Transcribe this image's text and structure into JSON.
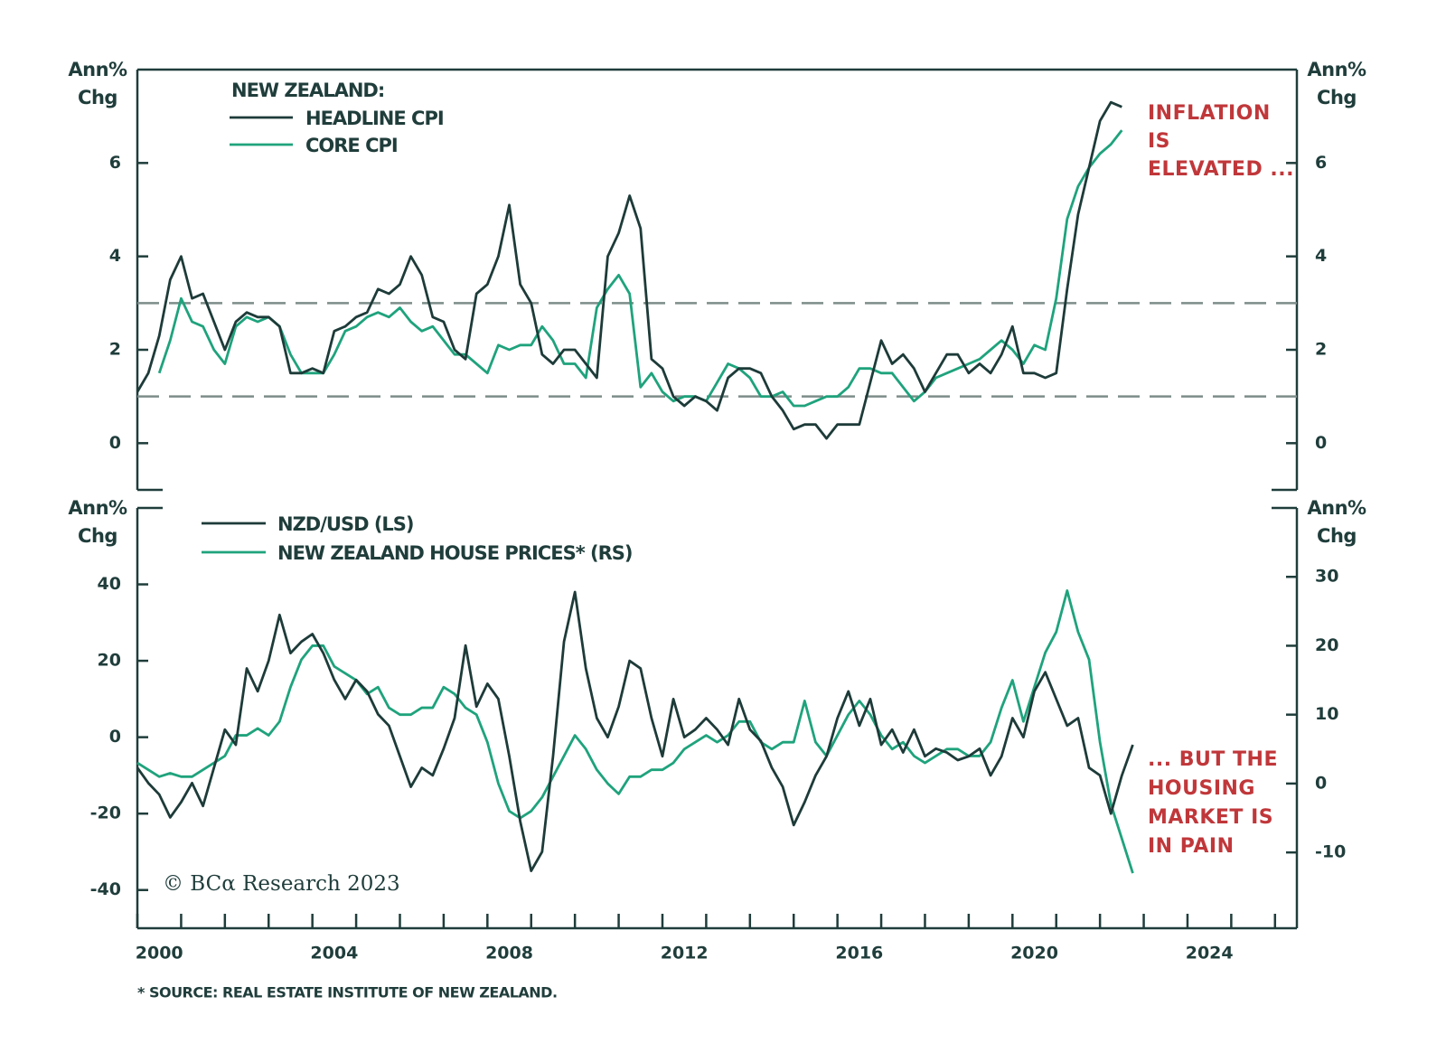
{
  "chart_data": [
    {
      "type": "line",
      "legend_title": "NEW ZEALAND:",
      "y_label": [
        "Ann%",
        "Chg"
      ],
      "y2_label": [
        "Ann%",
        "Chg"
      ],
      "xlim": [
        2000,
        2026.5
      ],
      "ylim": [
        -1,
        8
      ],
      "yticks": [
        0,
        2,
        4,
        6
      ],
      "y2lim": [
        -1,
        8
      ],
      "y2ticks": [
        0,
        2,
        4,
        6
      ],
      "reference_lines": [
        1,
        3
      ],
      "annotation": [
        "INFLATION",
        "IS",
        "ELEVATED ..."
      ],
      "annotation_color": "#c0373a",
      "x": [
        2000,
        2000.25,
        2000.5,
        2000.75,
        2001,
        2001.25,
        2001.5,
        2001.75,
        2002,
        2002.25,
        2002.5,
        2002.75,
        2003,
        2003.25,
        2003.5,
        2003.75,
        2004,
        2004.25,
        2004.5,
        2004.75,
        2005,
        2005.25,
        2005.5,
        2005.75,
        2006,
        2006.25,
        2006.5,
        2006.75,
        2007,
        2007.25,
        2007.5,
        2007.75,
        2008,
        2008.25,
        2008.5,
        2008.75,
        2009,
        2009.25,
        2009.5,
        2009.75,
        2010,
        2010.25,
        2010.5,
        2010.75,
        2011,
        2011.25,
        2011.5,
        2011.75,
        2012,
        2012.25,
        2012.5,
        2012.75,
        2013,
        2013.25,
        2013.5,
        2013.75,
        2014,
        2014.25,
        2014.5,
        2014.75,
        2015,
        2015.25,
        2015.5,
        2015.75,
        2016,
        2016.25,
        2016.5,
        2016.75,
        2017,
        2017.25,
        2017.5,
        2017.75,
        2018,
        2018.25,
        2018.5,
        2018.75,
        2019,
        2019.25,
        2019.5,
        2019.75,
        2020,
        2020.25,
        2020.5,
        2020.75,
        2021,
        2021.25,
        2021.5,
        2021.75,
        2022,
        2022.25,
        2022.5
      ],
      "series": [
        {
          "name": "HEADLINE CPI",
          "color": "#1d3b39",
          "values": [
            1.1,
            1.5,
            2.3,
            3.5,
            4.0,
            3.1,
            3.2,
            2.6,
            2.0,
            2.6,
            2.8,
            2.7,
            2.7,
            2.5,
            1.5,
            1.5,
            1.6,
            1.5,
            2.4,
            2.5,
            2.7,
            2.8,
            3.3,
            3.2,
            3.4,
            4.0,
            3.6,
            2.7,
            2.6,
            2.0,
            1.8,
            3.2,
            3.4,
            4.0,
            5.1,
            3.4,
            3.0,
            1.9,
            1.7,
            2.0,
            2.0,
            1.7,
            1.4,
            4.0,
            4.5,
            5.3,
            4.6,
            1.8,
            1.6,
            1.0,
            0.8,
            1.0,
            0.9,
            0.7,
            1.4,
            1.6,
            1.6,
            1.5,
            1.0,
            0.7,
            0.3,
            0.4,
            0.4,
            0.1,
            0.4,
            0.4,
            0.4,
            1.3,
            2.2,
            1.7,
            1.9,
            1.6,
            1.1,
            1.5,
            1.9,
            1.9,
            1.5,
            1.7,
            1.5,
            1.9,
            2.5,
            1.5,
            1.5,
            1.4,
            1.5,
            3.3,
            4.9,
            5.9,
            6.9,
            7.3,
            7.2
          ]
        },
        {
          "name": "CORE CPI",
          "color": "#1fa37c",
          "values": [
            null,
            null,
            1.5,
            2.2,
            3.1,
            2.6,
            2.5,
            2.0,
            1.7,
            2.5,
            2.7,
            2.6,
            2.7,
            2.5,
            1.9,
            1.5,
            1.5,
            1.5,
            1.9,
            2.4,
            2.5,
            2.7,
            2.8,
            2.7,
            2.9,
            2.6,
            2.4,
            2.5,
            2.2,
            1.9,
            1.9,
            1.7,
            1.5,
            2.1,
            2.0,
            2.1,
            2.1,
            2.5,
            2.2,
            1.7,
            1.7,
            1.4,
            2.9,
            3.3,
            3.6,
            3.2,
            1.2,
            1.5,
            1.1,
            0.9,
            1.0,
            1.0,
            0.9,
            1.3,
            1.7,
            1.6,
            1.4,
            1.0,
            1.0,
            1.1,
            0.8,
            0.8,
            0.9,
            1.0,
            1.0,
            1.2,
            1.6,
            1.6,
            1.5,
            1.5,
            1.2,
            0.9,
            1.1,
            1.4,
            1.5,
            1.6,
            1.7,
            1.8,
            2.0,
            2.2,
            2.0,
            1.7,
            2.1,
            2.0,
            3.1,
            4.8,
            5.5,
            5.9,
            6.2,
            6.4,
            6.7
          ]
        }
      ]
    },
    {
      "type": "line",
      "y_label": [
        "Ann%",
        "Chg"
      ],
      "y2_label": [
        "Ann%",
        "Chg"
      ],
      "xlim": [
        2000,
        2026.5
      ],
      "xticks": [
        2000,
        2004,
        2008,
        2012,
        2016,
        2020,
        2024
      ],
      "xminorticks": [
        2001,
        2002,
        2003,
        2005,
        2006,
        2007,
        2009,
        2010,
        2011,
        2013,
        2014,
        2015,
        2017,
        2018,
        2019,
        2021,
        2022,
        2023,
        2025,
        2026
      ],
      "ylim": [
        -50,
        60
      ],
      "yticks": [
        -40,
        -20,
        0,
        20,
        40
      ],
      "y2lim": [
        -21,
        40
      ],
      "y2ticks": [
        -10,
        0,
        10,
        20,
        30
      ],
      "annotation": [
        "... BUT THE",
        "HOUSING",
        "MARKET IS",
        "IN PAIN"
      ],
      "annotation_color": "#c0373a",
      "credit": "© BCα Research 2023",
      "footnote": "* SOURCE: REAL ESTATE INSTITUTE OF NEW ZEALAND.",
      "x": [
        2000,
        2000.25,
        2000.5,
        2000.75,
        2001,
        2001.25,
        2001.5,
        2001.75,
        2002,
        2002.25,
        2002.5,
        2002.75,
        2003,
        2003.25,
        2003.5,
        2003.75,
        2004,
        2004.25,
        2004.5,
        2004.75,
        2005,
        2005.25,
        2005.5,
        2005.75,
        2006,
        2006.25,
        2006.5,
        2006.75,
        2007,
        2007.25,
        2007.5,
        2007.75,
        2008,
        2008.25,
        2008.5,
        2008.75,
        2009,
        2009.25,
        2009.5,
        2009.75,
        2010,
        2010.25,
        2010.5,
        2010.75,
        2011,
        2011.25,
        2011.5,
        2011.75,
        2012,
        2012.25,
        2012.5,
        2012.75,
        2013,
        2013.25,
        2013.5,
        2013.75,
        2014,
        2014.25,
        2014.5,
        2014.75,
        2015,
        2015.25,
        2015.5,
        2015.75,
        2016,
        2016.25,
        2016.5,
        2016.75,
        2017,
        2017.25,
        2017.5,
        2017.75,
        2018,
        2018.25,
        2018.5,
        2018.75,
        2019,
        2019.25,
        2019.5,
        2019.75,
        2020,
        2020.25,
        2020.5,
        2020.75,
        2021,
        2021.25,
        2021.5,
        2021.75,
        2022,
        2022.25,
        2022.5,
        2022.75
      ],
      "series": [
        {
          "name": "NZD/USD (LS)",
          "color": "#1d3b39",
          "values": [
            -8,
            -12,
            -15,
            -21,
            -17,
            -12,
            -18,
            -8,
            2,
            -2,
            18,
            12,
            20,
            32,
            22,
            25,
            27,
            22,
            15,
            10,
            15,
            12,
            6,
            3,
            -5,
            -13,
            -8,
            -10,
            -3,
            5,
            24,
            8,
            14,
            10,
            -5,
            -22,
            -35,
            -30,
            -5,
            25,
            38,
            18,
            5,
            0,
            8,
            20,
            18,
            5,
            -5,
            10,
            0,
            2,
            5,
            2,
            -2,
            10,
            2,
            -1,
            -8,
            -13,
            -23,
            -17,
            -10,
            -5,
            5,
            12,
            3,
            10,
            -2,
            2,
            -4,
            2,
            -5,
            -3,
            -4,
            -6,
            -5,
            -3,
            -10,
            -5,
            5,
            0,
            12,
            17,
            10,
            3,
            5,
            -8,
            -10,
            -20,
            -10,
            -2
          ]
        },
        {
          "name": "NEW ZEALAND HOUSE PRICES* (RS)",
          "color": "#1fa37c",
          "axis": "y2",
          "values": [
            3,
            2,
            1,
            1.5,
            1,
            1,
            2,
            3,
            4,
            7,
            7,
            8,
            7,
            9,
            14,
            18,
            20,
            20,
            17,
            16,
            15,
            13,
            14,
            11,
            10,
            10,
            11,
            11,
            14,
            13,
            11,
            10,
            6,
            0,
            -4,
            -5,
            -4,
            -2,
            1,
            4,
            7,
            5,
            2,
            0,
            -1.5,
            1,
            1,
            2,
            2,
            3,
            5,
            6,
            7,
            6,
            7,
            9,
            9,
            6,
            5,
            6,
            6,
            12,
            6,
            4,
            7,
            10,
            12,
            10,
            7,
            5,
            6,
            4,
            3,
            4,
            5,
            5,
            4,
            4,
            6,
            11,
            15,
            9,
            14,
            19,
            22,
            28,
            22,
            18,
            6,
            -3,
            -8,
            -13
          ]
        }
      ]
    }
  ]
}
